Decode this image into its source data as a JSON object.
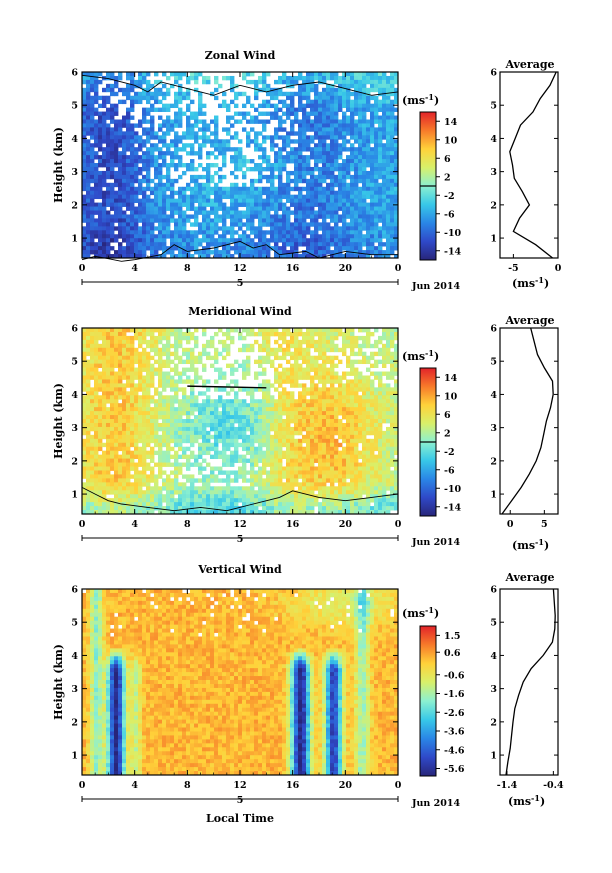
{
  "figure": {
    "date_label": "Jun 2014",
    "day_label": "5",
    "xlabel": "Local Time",
    "unit_label": "(ms",
    "unit_exp": "-1",
    "profile_xlabel": "(ms",
    "average_title": "Average"
  },
  "chart_data": [
    {
      "type": "heatmap",
      "title": "Zonal Wind",
      "ylabel": "Height (km)",
      "xlabel": "",
      "x_ticks": [
        "0",
        "4",
        "8",
        "12",
        "16",
        "20",
        "0"
      ],
      "y_ticks": [
        "1",
        "2",
        "3",
        "4",
        "5",
        "6"
      ],
      "x_range_hours": [
        0,
        24
      ],
      "y_range_km": [
        0.4,
        6.0
      ],
      "colorbar": {
        "ticks": [
          "14",
          "10",
          "6",
          "2",
          "-2",
          "-6",
          "-10",
          "-14"
        ],
        "range": [
          -16,
          16
        ],
        "zero_line": true
      },
      "field_description_values": {
        "dominant": "easterly, mostly -2 to -14 ms-1 below 5 km, strongest (-10 to -14) near 0-4 h",
        "upper_layer": "weak westerly 0 to 4 ms-1 above 5.5 km"
      },
      "average_profile": {
        "x_ticks": [
          "-5",
          "0"
        ],
        "xlim": [
          -6.5,
          0
        ],
        "height_km": [
          0.4,
          0.8,
          1.2,
          1.6,
          2.0,
          2.4,
          2.8,
          3.2,
          3.6,
          4.0,
          4.4,
          4.8,
          5.2,
          5.6,
          6.0
        ],
        "value": [
          -0.6,
          -2.5,
          -5.0,
          -4.3,
          -3.2,
          -4.0,
          -4.9,
          -5.1,
          -5.4,
          -4.8,
          -4.2,
          -2.8,
          -2.0,
          -0.9,
          -0.2
        ]
      }
    },
    {
      "type": "heatmap",
      "title": "Meridional Wind",
      "ylabel": "Height (km)",
      "xlabel": "",
      "x_ticks": [
        "0",
        "4",
        "8",
        "12",
        "16",
        "20",
        "0"
      ],
      "y_ticks": [
        "1",
        "2",
        "3",
        "4",
        "5",
        "6"
      ],
      "x_range_hours": [
        0,
        24
      ],
      "y_range_km": [
        0.4,
        6.0
      ],
      "colorbar": {
        "ticks": [
          "14",
          "10",
          "6",
          "2",
          "-2",
          "-6",
          "-10",
          "-14"
        ],
        "range": [
          -16,
          16
        ],
        "zero_line": true
      },
      "field_description_values": {
        "dominant": "southerly 2 to 10 ms-1, maxima near 2 h and 19 h",
        "weak": "near zero to -4 ms-1 around 8-14 h and below 1 km"
      },
      "average_profile": {
        "x_ticks": [
          "0",
          "5"
        ],
        "xlim": [
          -1.5,
          7
        ],
        "height_km": [
          0.4,
          0.8,
          1.2,
          1.6,
          2.0,
          2.4,
          2.8,
          3.2,
          3.6,
          4.0,
          4.4,
          4.8,
          5.2,
          5.6,
          6.0
        ],
        "value": [
          -1.2,
          0.2,
          1.6,
          2.8,
          3.8,
          4.5,
          4.9,
          5.3,
          5.9,
          6.3,
          6.2,
          5.0,
          4.0,
          3.5,
          3.0
        ]
      }
    },
    {
      "type": "heatmap",
      "title": "Vertical Wind",
      "ylabel": "Height (km)",
      "xlabel": "Local Time",
      "x_ticks": [
        "0",
        "4",
        "8",
        "12",
        "16",
        "20",
        "0"
      ],
      "y_ticks": [
        "1",
        "2",
        "3",
        "4",
        "5",
        "6"
      ],
      "x_range_hours": [
        0,
        24
      ],
      "y_range_km": [
        0.4,
        6.0
      ],
      "colorbar": {
        "ticks": [
          "1.5",
          "0.6",
          "-0.6",
          "-1.6",
          "-2.6",
          "-3.6",
          "-4.6",
          "-5.6"
        ],
        "range": [
          -6.0,
          2.0
        ],
        "zero_line": false
      },
      "field_description_values": {
        "dominant": "about 0 to 0.5 ms-1 over most of the domain",
        "downdrafts": "strong negative -4 to -6 ms-1 below 3.5 km near 2.5 h, 16.5 h and 19 h"
      },
      "average_profile": {
        "x_ticks": [
          "-1.4",
          "-0.4"
        ],
        "xlim": [
          -1.55,
          -0.3
        ],
        "height_km": [
          0.4,
          0.8,
          1.2,
          1.6,
          2.0,
          2.4,
          2.8,
          3.2,
          3.6,
          4.0,
          4.4,
          4.8,
          5.2,
          5.6,
          6.0
        ],
        "value": [
          -1.42,
          -1.38,
          -1.33,
          -1.3,
          -1.27,
          -1.23,
          -1.15,
          -1.05,
          -0.88,
          -0.62,
          -0.42,
          -0.37,
          -0.36,
          -0.38,
          -0.4
        ]
      }
    }
  ]
}
